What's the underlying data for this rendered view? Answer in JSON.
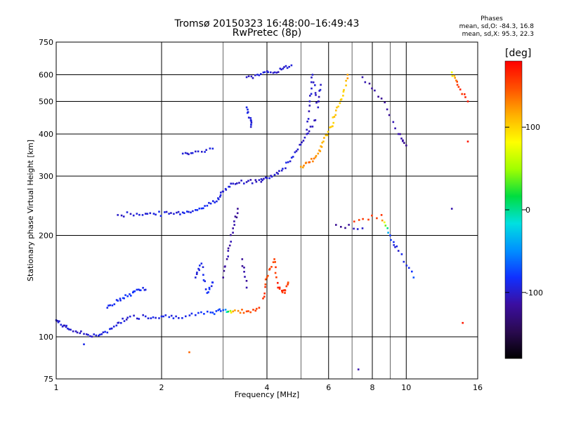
{
  "header": {
    "title_line1": "Tromsø 20150323 16:48:00–16:49:43",
    "title_line2": "RwPretec (8p)"
  },
  "phases_box": {
    "title": "Phases",
    "line_o": "mean, sd,O: -84.3, 16.8",
    "line_x": "mean, sd,X:  95.3, 22.3"
  },
  "colorbar": {
    "unit_label": "[deg]",
    "ticks": [
      "100",
      "0",
      "-100"
    ],
    "tick_values": [
      100,
      0,
      -100
    ],
    "range": [
      -180,
      180
    ],
    "colormap": [
      "#000000",
      "#2a0a50",
      "#3b0ea0",
      "#1030ff",
      "#0090ff",
      "#00e0e0",
      "#00dd40",
      "#a0ff00",
      "#ffff00",
      "#ffb000",
      "#ff5000",
      "#ff0000"
    ]
  },
  "chart_data": {
    "type": "scatter",
    "title": "Tromsø 20150323 16:48:00–16:49:43",
    "subtitle": "RwPretec (8p)",
    "xlabel": "Frequency [MHz]",
    "ylabel": "Stationary phase Virtual Height [km]",
    "xscale": "log",
    "yscale": "log",
    "xlim": [
      1,
      16
    ],
    "ylim": [
      75,
      750
    ],
    "xticks": [
      1,
      2,
      4,
      6,
      8,
      10,
      16
    ],
    "xtick_labels": [
      "1",
      "2",
      "4",
      "6",
      "8",
      "10",
      "16"
    ],
    "xminor": [
      3,
      5,
      7,
      9
    ],
    "yticks": [
      75,
      100,
      200,
      300,
      400,
      500,
      600,
      750
    ],
    "ytick_labels": [
      "75",
      "100",
      "200",
      "300",
      "400",
      "500",
      "600",
      "750"
    ],
    "grid": true,
    "color_meaning": "phase [deg]",
    "traces": [
      {
        "name": "",
        "points": [
          [
            1.0,
            112,
            -95
          ],
          [
            1.05,
            108,
            -100
          ],
          [
            1.1,
            105,
            -98
          ],
          [
            1.2,
            102,
            -100
          ],
          [
            1.3,
            101,
            -95
          ],
          [
            1.4,
            103,
            -90
          ],
          [
            1.5,
            110,
            -100
          ],
          [
            1.6,
            114,
            -98
          ],
          [
            1.8,
            115,
            -92
          ],
          [
            2.0,
            115,
            -90
          ],
          [
            2.2,
            115,
            -92
          ],
          [
            2.5,
            116,
            -88
          ],
          [
            2.8,
            118,
            -80
          ],
          [
            3.0,
            120,
            -75
          ],
          [
            3.2,
            119,
            120
          ],
          [
            3.5,
            119,
            150
          ],
          [
            3.8,
            122,
            160
          ]
        ]
      },
      {
        "name": "",
        "points": [
          [
            1.4,
            122,
            -90
          ],
          [
            1.5,
            128,
            -85
          ],
          [
            1.6,
            132,
            -80
          ],
          [
            1.7,
            138,
            -85
          ],
          [
            1.8,
            138,
            -90
          ]
        ]
      },
      {
        "name": "",
        "points": [
          [
            1.5,
            230,
            -100
          ],
          [
            1.7,
            232,
            -95
          ],
          [
            1.9,
            232,
            -92
          ],
          [
            2.1,
            232,
            -95
          ],
          [
            2.3,
            234,
            -90
          ],
          [
            2.5,
            238,
            -88
          ],
          [
            2.7,
            245,
            -85
          ],
          [
            2.9,
            258,
            -90
          ],
          [
            3.0,
            270,
            -95
          ],
          [
            3.2,
            285,
            -100
          ],
          [
            3.5,
            288,
            -105
          ],
          [
            3.8,
            292,
            -100
          ],
          [
            4.0,
            296,
            -98
          ],
          [
            4.3,
            305,
            -100
          ],
          [
            4.6,
            330,
            -95
          ],
          [
            4.9,
            360,
            -98
          ],
          [
            5.2,
            400,
            -100
          ],
          [
            5.5,
            440,
            -105
          ]
        ]
      },
      {
        "name": "",
        "points": [
          [
            3.5,
            590,
            -100
          ],
          [
            3.8,
            598,
            -95
          ],
          [
            4.1,
            610,
            -98
          ],
          [
            4.4,
            622,
            -100
          ],
          [
            4.7,
            640,
            -95
          ]
        ]
      },
      {
        "name": "",
        "points": [
          [
            2.3,
            350,
            -95
          ],
          [
            2.5,
            355,
            -100
          ],
          [
            2.8,
            362,
            -90
          ]
        ]
      },
      {
        "name": "",
        "points": [
          [
            5.0,
            320,
            120
          ],
          [
            5.3,
            330,
            140
          ],
          [
            5.6,
            350,
            120
          ],
          [
            5.8,
            380,
            110
          ],
          [
            6.1,
            420,
            100
          ],
          [
            6.3,
            470,
            110
          ],
          [
            6.6,
            520,
            100
          ],
          [
            6.8,
            600,
            120
          ]
        ]
      },
      {
        "name": "",
        "points": [
          [
            3.9,
            130,
            160
          ],
          [
            4.0,
            150,
            150
          ],
          [
            4.2,
            170,
            155
          ],
          [
            4.3,
            140,
            165
          ],
          [
            4.5,
            135,
            160
          ],
          [
            4.6,
            145,
            150
          ]
        ]
      },
      {
        "name": "",
        "points": [
          [
            3.0,
            150,
            -120
          ],
          [
            3.1,
            180,
            -110
          ],
          [
            3.2,
            210,
            -115
          ],
          [
            3.3,
            240,
            -120
          ],
          [
            3.4,
            170,
            -118
          ],
          [
            3.5,
            140,
            -110
          ]
        ]
      },
      {
        "name": "",
        "points": [
          [
            2.5,
            150,
            -95
          ],
          [
            2.6,
            165,
            -90
          ],
          [
            2.7,
            135,
            -85
          ],
          [
            2.8,
            145,
            -88
          ]
        ]
      },
      {
        "name": "",
        "points": [
          [
            5.2,
            400,
            -105
          ],
          [
            5.3,
            500,
            -100
          ],
          [
            5.4,
            600,
            -98
          ],
          [
            5.6,
            480,
            -100
          ],
          [
            5.7,
            560,
            -102
          ]
        ]
      },
      {
        "name": "",
        "points": [
          [
            3.6,
            420,
            -100
          ],
          [
            3.6,
            440,
            -95
          ],
          [
            3.5,
            480,
            -90
          ]
        ]
      },
      {
        "name": "",
        "points": [
          [
            7.5,
            590,
            -110
          ],
          [
            8.5,
            510,
            -120
          ],
          [
            9.5,
            400,
            -110
          ],
          [
            10.0,
            370,
            -120
          ],
          [
            13.5,
            610,
            80
          ],
          [
            14.0,
            560,
            160
          ],
          [
            15.0,
            500,
            170
          ],
          [
            15.0,
            380,
            170
          ],
          [
            7.1,
            220,
            160
          ],
          [
            8.5,
            230,
            160
          ],
          [
            9.0,
            200,
            -80
          ],
          [
            9.5,
            180,
            -100
          ],
          [
            10.5,
            150,
            -70
          ],
          [
            13.5,
            240,
            -110
          ],
          [
            14.5,
            110,
            170
          ],
          [
            7.3,
            80,
            -110
          ],
          [
            2.4,
            90,
            140
          ],
          [
            1.2,
            95,
            -90
          ],
          [
            6.3,
            215,
            -120
          ],
          [
            7.5,
            210,
            -100
          ]
        ]
      }
    ]
  },
  "labels": {
    "xlabel": "Frequency [MHz]",
    "ylabel": "Stationary phase Virtual Height [km]"
  }
}
